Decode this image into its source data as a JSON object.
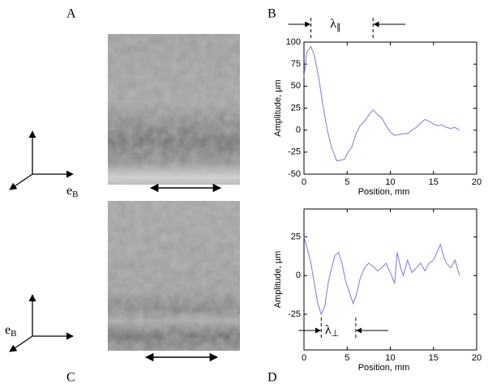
{
  "panel_labels": [
    "A",
    "B",
    "C",
    "D"
  ],
  "basis_label": {
    "text": "e",
    "subscript": "B"
  },
  "chart_data": [
    {
      "type": "line",
      "x_label": "Position, mm",
      "y_label": "Amplitude, µm",
      "xlim": [
        0,
        20
      ],
      "ylim": [
        -50,
        100
      ],
      "xticks": [
        0,
        5,
        10,
        15,
        20
      ],
      "yticks": [
        -50,
        -25,
        0,
        25,
        50,
        75,
        100
      ],
      "series": [
        {
          "color": "#7b7bd8",
          "x": [
            0,
            0.3,
            0.8,
            1.2,
            1.7,
            2.2,
            2.7,
            3.2,
            3.8,
            4.3,
            4.7,
            5.1,
            5.5,
            6.0,
            6.5,
            7.0,
            7.5,
            8.0,
            8.5,
            9.0,
            9.5,
            10.0,
            10.5,
            11.0,
            11.5,
            12.0,
            12.5,
            13.0,
            13.5,
            14.0,
            14.5,
            15.0,
            15.5,
            16.0,
            16.5,
            17.0,
            17.5,
            18.0
          ],
          "values": [
            60,
            88,
            95,
            85,
            60,
            28,
            0,
            -20,
            -35,
            -34,
            -33,
            -25,
            -20,
            -5,
            5,
            10,
            17,
            23,
            18,
            14,
            5,
            -2,
            -6,
            -5,
            -4,
            -4,
            0,
            3,
            8,
            12,
            10,
            7,
            5,
            6,
            3,
            2,
            3,
            0
          ]
        }
      ],
      "annotation": {
        "text": "λ",
        "subscript": "∥",
        "x": [
          0.8,
          8
        ]
      }
    },
    {
      "type": "line",
      "x_label": "Position, mm",
      "y_label": "Amplitude, µm",
      "xlim": [
        0,
        20
      ],
      "ylim": [
        -48,
        43
      ],
      "xticks": [
        0,
        5,
        10,
        15,
        20
      ],
      "yticks": [
        -25,
        0,
        25
      ],
      "series": [
        {
          "color": "#7b7bd8",
          "x": [
            0,
            0.4,
            0.8,
            1.2,
            1.6,
            2.0,
            2.4,
            2.8,
            3.2,
            3.6,
            4.0,
            4.4,
            4.8,
            5.2,
            5.7,
            6.1,
            6.5,
            7.0,
            7.5,
            8.0,
            8.5,
            9.0,
            9.5,
            10.0,
            10.5,
            10.8,
            11.2,
            11.5,
            12.0,
            12.5,
            13.0,
            13.5,
            14.0,
            14.5,
            15.0,
            15.4,
            15.8,
            16.2,
            16.5,
            17.0,
            17.5,
            18.0
          ],
          "values": [
            25,
            17,
            8,
            -5,
            -18,
            -25,
            -20,
            -5,
            5,
            13,
            15,
            8,
            -3,
            -10,
            -18,
            -12,
            -2,
            5,
            8,
            6,
            3,
            5,
            8,
            2,
            -5,
            15,
            5,
            0,
            10,
            2,
            5,
            8,
            3,
            8,
            10,
            15,
            20,
            12,
            8,
            5,
            10,
            0
          ]
        }
      ],
      "annotation": {
        "text": "λ",
        "subscript": "⊥",
        "x": [
          2,
          6
        ]
      }
    }
  ]
}
